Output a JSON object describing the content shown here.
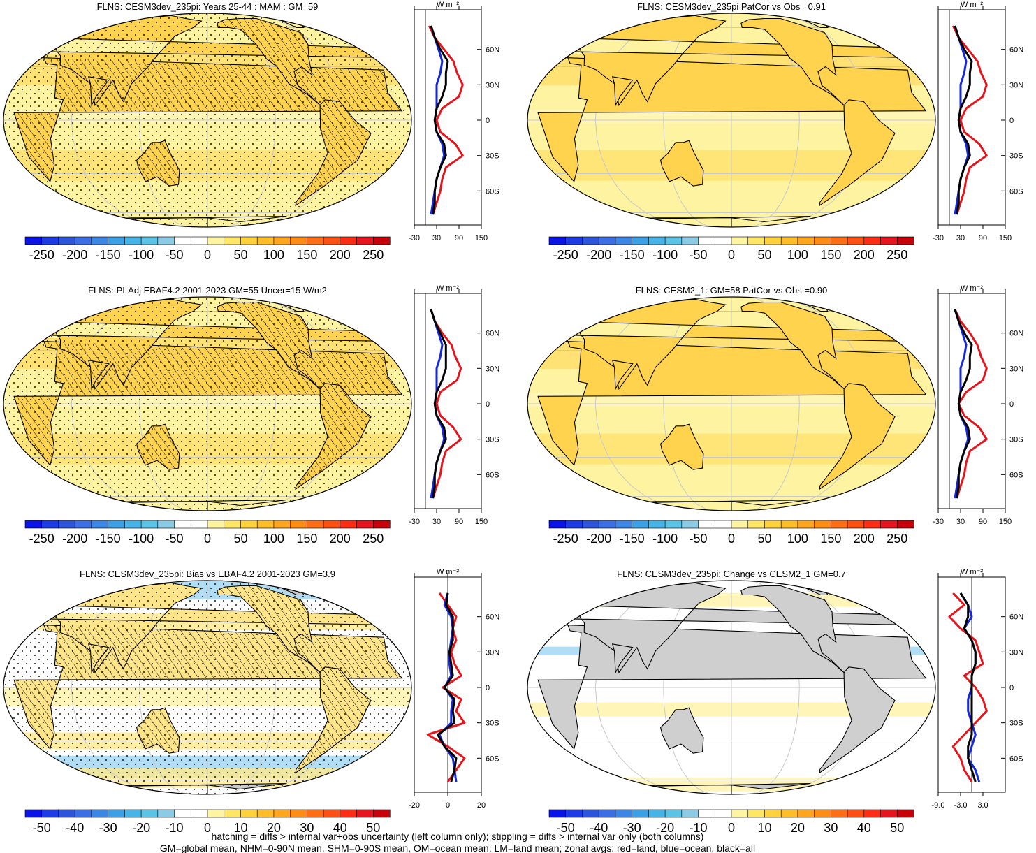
{
  "colors": {
    "ocean": "#fdf3a0",
    "land_gray": "#c8c8c8",
    "coast": "#000000",
    "zonal_land": "#e8141c",
    "zonal_ocean": "#1428e0",
    "zonal_all": "#000000"
  },
  "colorbars": {
    "abs": {
      "colors": [
        "#0a14e6",
        "#1e3ce6",
        "#2d55dc",
        "#3c6ee6",
        "#3c87e6",
        "#3ca0e6",
        "#46b4e6",
        "#5ac3e6",
        "#8ccbe6",
        "#ffffff",
        "#ffffff",
        "#fff5a0",
        "#ffe664",
        "#ffd23c",
        "#ffbe28",
        "#ffa51e",
        "#ff8c14",
        "#ff6e14",
        "#ff5014",
        "#ff2d14",
        "#e6141e",
        "#c8000a"
      ],
      "labels": [
        "-250",
        "-200",
        "-150",
        "-100",
        "-50",
        "0",
        "50",
        "100",
        "150",
        "200",
        "250"
      ]
    },
    "diff": {
      "colors": [
        "#0a14e6",
        "#1e3ce6",
        "#2d55dc",
        "#3c6ee6",
        "#3c87e6",
        "#3ca0e6",
        "#46b4e6",
        "#5ac3e6",
        "#8ccbe6",
        "#ffffff",
        "#ffffff",
        "#fff5a0",
        "#ffe664",
        "#ffd23c",
        "#ffbe28",
        "#ffa51e",
        "#ff8c14",
        "#ff6e14",
        "#ff5014",
        "#ff2d14",
        "#e6141e",
        "#c8000a"
      ],
      "labels": [
        "-50",
        "-40",
        "-30",
        "-20",
        "-10",
        "0",
        "10",
        "20",
        "30",
        "40",
        "50"
      ]
    }
  },
  "panels": [
    {
      "id": "cesm3-climatology",
      "title": "FLNS: CESM3dev_235pi: Years 25-44 : MAM : GM=59",
      "scale": "abs",
      "style": "abs",
      "hatch": true,
      "stipple": true,
      "zonal": {
        "unit": "W m⁻²",
        "ticks": [
          "-30",
          "30",
          "90",
          "150"
        ],
        "xrange": [
          -30,
          150
        ],
        "lat_labels": [
          "60N",
          "30N",
          "0",
          "30S",
          "60S"
        ]
      }
    },
    {
      "id": "cesm3-patcor",
      "title": "FLNS: CESM3dev_235pi PatCor vs Obs =0.91",
      "scale": "abs",
      "style": "abs",
      "hatch": false,
      "stipple": false,
      "zonal": {
        "unit": "W m⁻²",
        "ticks": [
          "-30",
          "30",
          "90",
          "150"
        ],
        "xrange": [
          -30,
          150
        ],
        "lat_labels": [
          "60N",
          "30N",
          "0",
          "30S",
          "60S"
        ]
      }
    },
    {
      "id": "obs-ebaf",
      "title": "FLNS: PI-Adj EBAF4.2 2001-2023 GM=55 Uncer=15 W/m2",
      "scale": "abs",
      "style": "abs",
      "hatch": true,
      "stipple": true,
      "zonal": {
        "unit": "W m⁻²",
        "ticks": [
          "-30",
          "30",
          "90",
          "150"
        ],
        "xrange": [
          -30,
          150
        ],
        "lat_labels": [
          "60N",
          "30N",
          "0",
          "30S",
          "60S"
        ]
      }
    },
    {
      "id": "cesm2-climatology",
      "title": "FLNS: CESM2_1: GM=58 PatCor vs Obs =0.90",
      "scale": "abs",
      "style": "abs",
      "hatch": false,
      "stipple": false,
      "zonal": {
        "unit": "W m⁻²",
        "ticks": [
          "-30",
          "30",
          "90",
          "150"
        ],
        "xrange": [
          -30,
          150
        ],
        "lat_labels": [
          "60N",
          "30N",
          "0",
          "30S",
          "60S"
        ]
      }
    },
    {
      "id": "bias-vs-obs",
      "title": "FLNS: CESM3dev_235pi: Bias vs EBAF4.2 2001-2023 GM=3.9",
      "scale": "diff",
      "style": "bias",
      "hatch": true,
      "stipple": true,
      "zonal": {
        "unit": "W m⁻²",
        "ticks": [
          "-20",
          "0",
          "20"
        ],
        "xrange": [
          -20,
          20
        ],
        "lat_labels": [
          "60N",
          "30N",
          "0",
          "30S",
          "60S"
        ]
      }
    },
    {
      "id": "change-vs-cesm2",
      "title": "FLNS: CESM3dev_235pi: Change vs CESM2_1 GM=0.7",
      "scale": "diff",
      "style": "change",
      "hatch": false,
      "stipple": false,
      "zonal": {
        "unit": "W m⁻²",
        "ticks": [
          "-9.0",
          "-3.0",
          "3.0"
        ],
        "xrange": [
          -9,
          9
        ],
        "lat_labels": [
          "60N",
          "30N",
          "0",
          "30S",
          "60S"
        ]
      }
    }
  ],
  "chart_data": {
    "type": "heatmap",
    "variable": "FLNS",
    "zonal_mean_lat": [
      80,
      70,
      60,
      50,
      40,
      30,
      20,
      10,
      0,
      -10,
      -20,
      -30,
      -40,
      -50,
      -60,
      -70,
      -80
    ],
    "zonal_means": [
      {
        "panel": "cesm3-climatology",
        "land": [
          10,
          25,
          50,
          75,
          85,
          100,
          90,
          45,
          30,
          40,
          80,
          100,
          55,
          45,
          40,
          30,
          20
        ],
        "ocean": [
          15,
          25,
          35,
          45,
          40,
          30,
          30,
          30,
          25,
          30,
          45,
          50,
          40,
          30,
          25,
          20,
          15
        ],
        "all": [
          15,
          25,
          40,
          60,
          55,
          55,
          45,
          30,
          25,
          30,
          50,
          55,
          40,
          30,
          25,
          25,
          20
        ]
      },
      {
        "panel": "cesm3-patcor",
        "land": [
          10,
          25,
          50,
          75,
          85,
          100,
          90,
          45,
          30,
          40,
          80,
          100,
          55,
          45,
          40,
          30,
          20
        ],
        "ocean": [
          15,
          25,
          35,
          45,
          40,
          30,
          30,
          30,
          25,
          30,
          45,
          50,
          40,
          30,
          25,
          20,
          15
        ],
        "all": [
          15,
          25,
          40,
          60,
          55,
          55,
          45,
          30,
          25,
          30,
          50,
          55,
          40,
          30,
          25,
          25,
          20
        ]
      },
      {
        "panel": "obs-ebaf",
        "land": [
          15,
          25,
          45,
          70,
          80,
          95,
          85,
          40,
          30,
          40,
          75,
          95,
          55,
          45,
          40,
          30,
          20
        ],
        "ocean": [
          15,
          25,
          35,
          45,
          40,
          30,
          30,
          30,
          25,
          30,
          45,
          50,
          40,
          30,
          25,
          20,
          15
        ],
        "all": [
          15,
          25,
          40,
          55,
          55,
          55,
          45,
          30,
          25,
          30,
          50,
          55,
          40,
          30,
          25,
          25,
          20
        ]
      },
      {
        "panel": "cesm2-climatology",
        "land": [
          15,
          30,
          55,
          75,
          85,
          100,
          90,
          45,
          25,
          40,
          80,
          100,
          55,
          45,
          40,
          30,
          20
        ],
        "ocean": [
          15,
          25,
          35,
          45,
          40,
          30,
          30,
          30,
          25,
          30,
          45,
          50,
          40,
          30,
          25,
          20,
          15
        ],
        "all": [
          15,
          25,
          40,
          60,
          55,
          55,
          45,
          30,
          25,
          30,
          50,
          55,
          40,
          30,
          25,
          25,
          20
        ]
      },
      {
        "panel": "bias-vs-obs",
        "land": [
          -5,
          0,
          5,
          3,
          5,
          2,
          4,
          8,
          -3,
          8,
          5,
          10,
          -12,
          0,
          10,
          5,
          0
        ],
        "ocean": [
          0,
          -2,
          2,
          3,
          2,
          1,
          1,
          2,
          -2,
          3,
          2,
          2,
          -5,
          -2,
          3,
          4,
          5
        ],
        "all": [
          0,
          -1,
          3,
          3,
          3,
          1,
          2,
          3,
          -2,
          4,
          3,
          4,
          -6,
          -2,
          5,
          4,
          2
        ],
        "plot_range": [
          -20,
          20
        ]
      },
      {
        "panel": "change-vs-cesm2",
        "land": [
          -5,
          -2,
          -6,
          -3,
          1,
          2,
          3,
          -2,
          1,
          3,
          4,
          1,
          -2,
          -5,
          -3,
          -2,
          0
        ],
        "ocean": [
          -3,
          -1,
          0,
          -2,
          0,
          1,
          1,
          0,
          0,
          -1,
          -1,
          0,
          1,
          0,
          -1,
          1,
          2
        ],
        "all": [
          -3,
          -1,
          -1,
          -2,
          0,
          1,
          1,
          0,
          0,
          0,
          0,
          0,
          0,
          -1,
          -1,
          0,
          1
        ],
        "plot_range": [
          -9,
          9
        ]
      }
    ]
  },
  "footnote": {
    "line1": "hatching = diffs > internal var+obs uncertainty (left column only); stippling = diffs > internal var only (both columns)",
    "line2": "GM=global mean, NHM=0-90N mean, SHM=0-90S mean, OM=ocean mean, LM=land mean; zonal avgs: red=land, blue=ocean, black=all"
  }
}
